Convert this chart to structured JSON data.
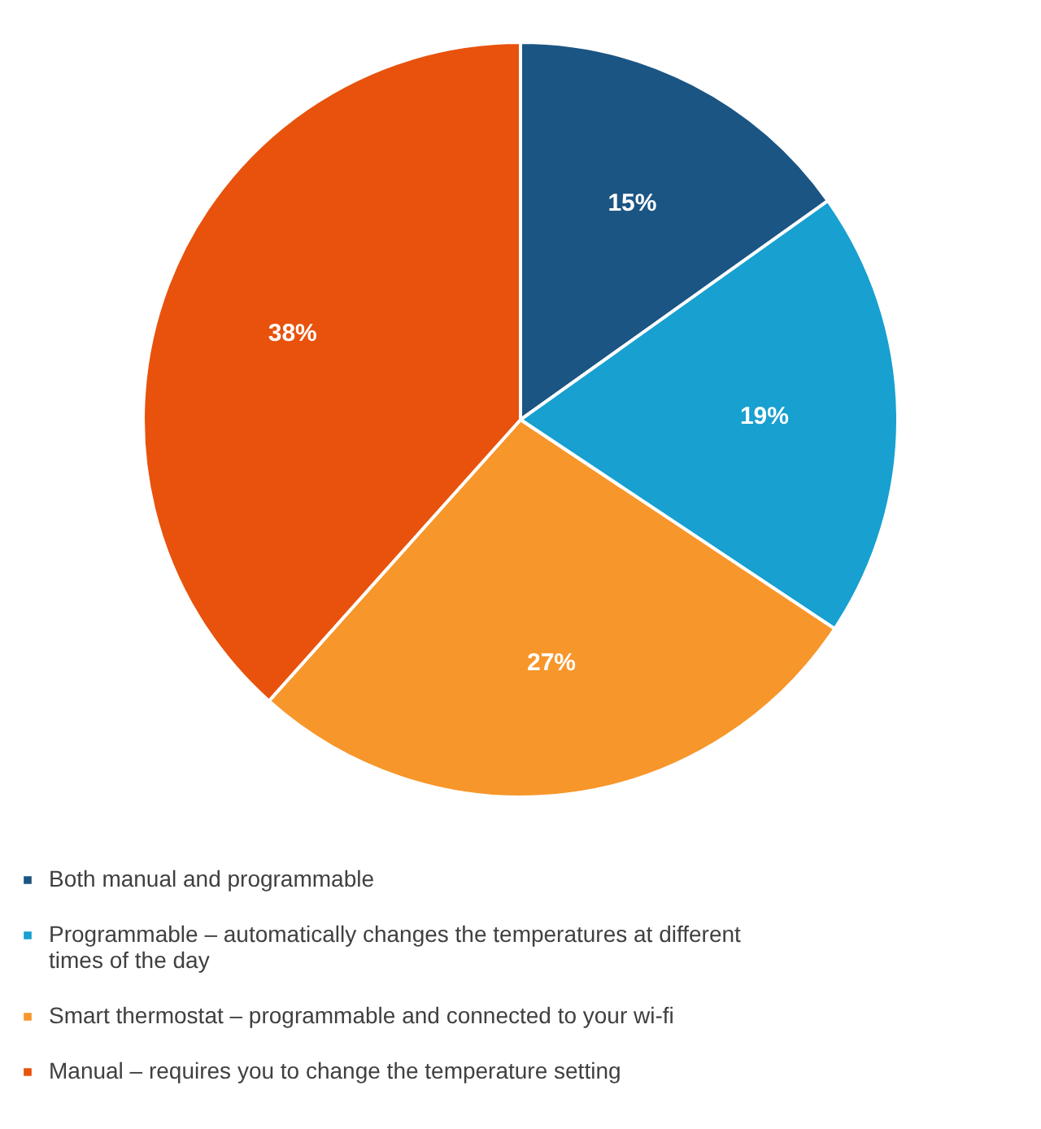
{
  "chart_data": {
    "type": "pie",
    "categories": [
      "Both manual and programmable",
      "Programmable – automatically changes the temperatures at different times of the day",
      "Smart thermostat – programmable and connected to your wi-fi",
      "Manual – requires you to change the temperature setting"
    ],
    "values": [
      15,
      19,
      27,
      38
    ],
    "colors": [
      "#1b5583",
      "#17a0d0",
      "#f7962a",
      "#e8520c"
    ],
    "value_labels": [
      "15%",
      "19%",
      "27%",
      "38%"
    ],
    "legend": "bottom"
  }
}
